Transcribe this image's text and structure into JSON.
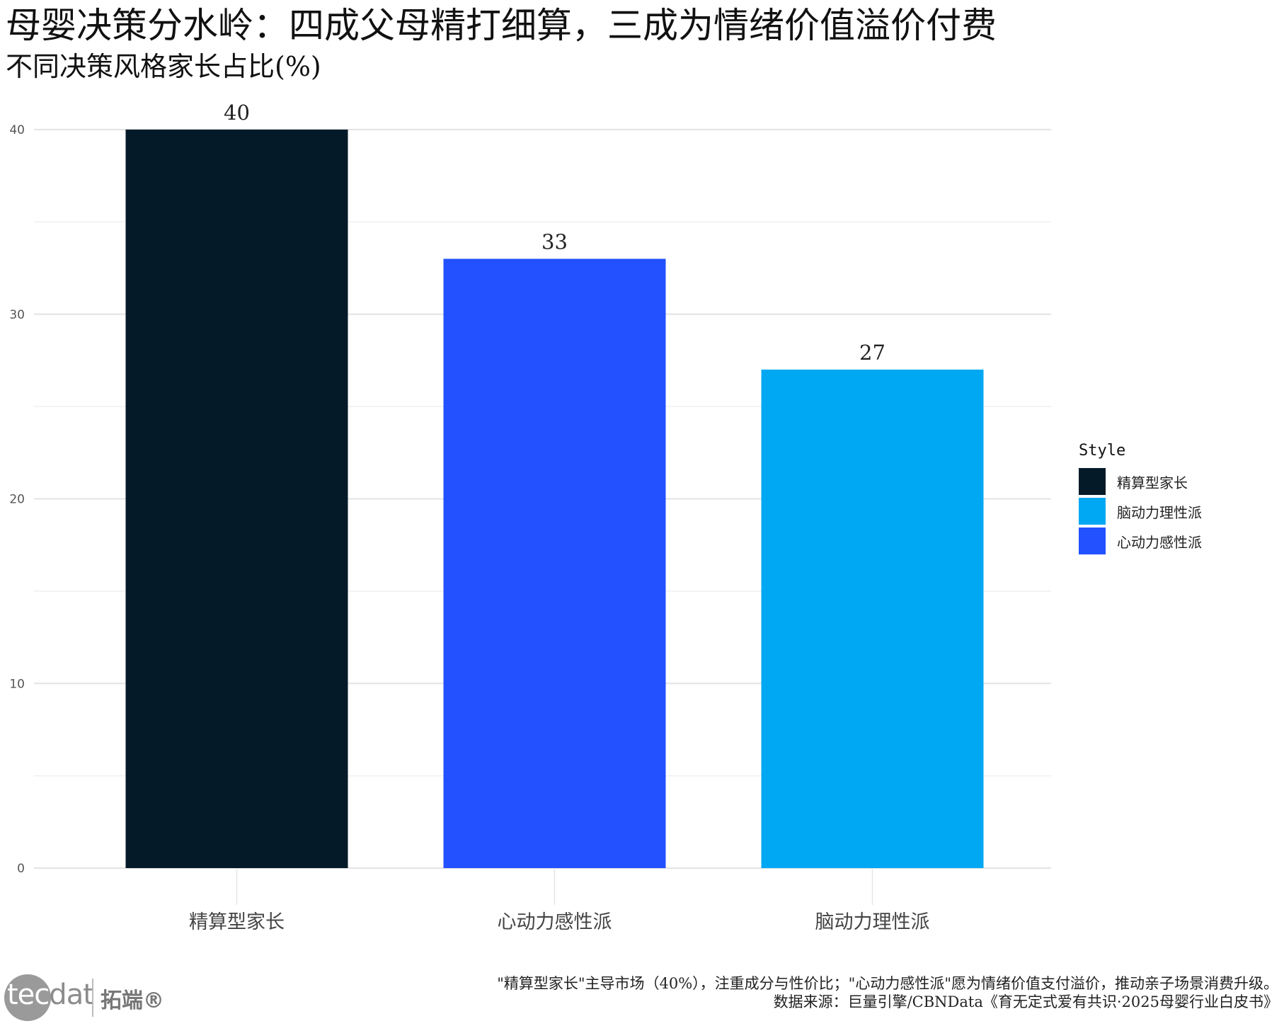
{
  "chart_data": {
    "type": "bar",
    "title": "母婴决策分水岭：四成父母精打细算，三成为情绪价值溢价付费",
    "subtitle": "不同决策风格家长占比(%)",
    "xlabel": "",
    "ylabel": "",
    "categories": [
      "精算型家长",
      "心动力感性派",
      "脑动力理性派"
    ],
    "values": [
      40,
      33,
      27
    ],
    "value_labels": [
      "40",
      "33",
      "27"
    ],
    "bar_colors": [
      "#041a28",
      "#2351ff",
      "#00a8f3"
    ],
    "ylim": [
      0,
      40
    ],
    "yticks": [
      0,
      10,
      20,
      30,
      40
    ],
    "ytick_labels": [
      "0",
      "10",
      "20",
      "30",
      "40"
    ],
    "grid": true,
    "legend": {
      "title": "Style",
      "position": "right",
      "entries": [
        {
          "label": "精算型家长",
          "color": "#041a28"
        },
        {
          "label": "脑动力理性派",
          "color": "#00a8f3"
        },
        {
          "label": "心动力感性派",
          "color": "#2351ff"
        }
      ]
    }
  },
  "brand": {
    "logo_part1": "tec",
    "logo_part2": "dat",
    "name_cn": "拓端®"
  },
  "footnote": {
    "line1": "\"精算型家长\"主导市场（40%），注重成分与性价比；\"心动力感性派\"愿为情绪价值支付溢价，推动亲子场景消费升级。",
    "line2": "数据来源：巨量引擎/CBNData《育无定式爱有共识·2025母婴行业白皮书》"
  }
}
